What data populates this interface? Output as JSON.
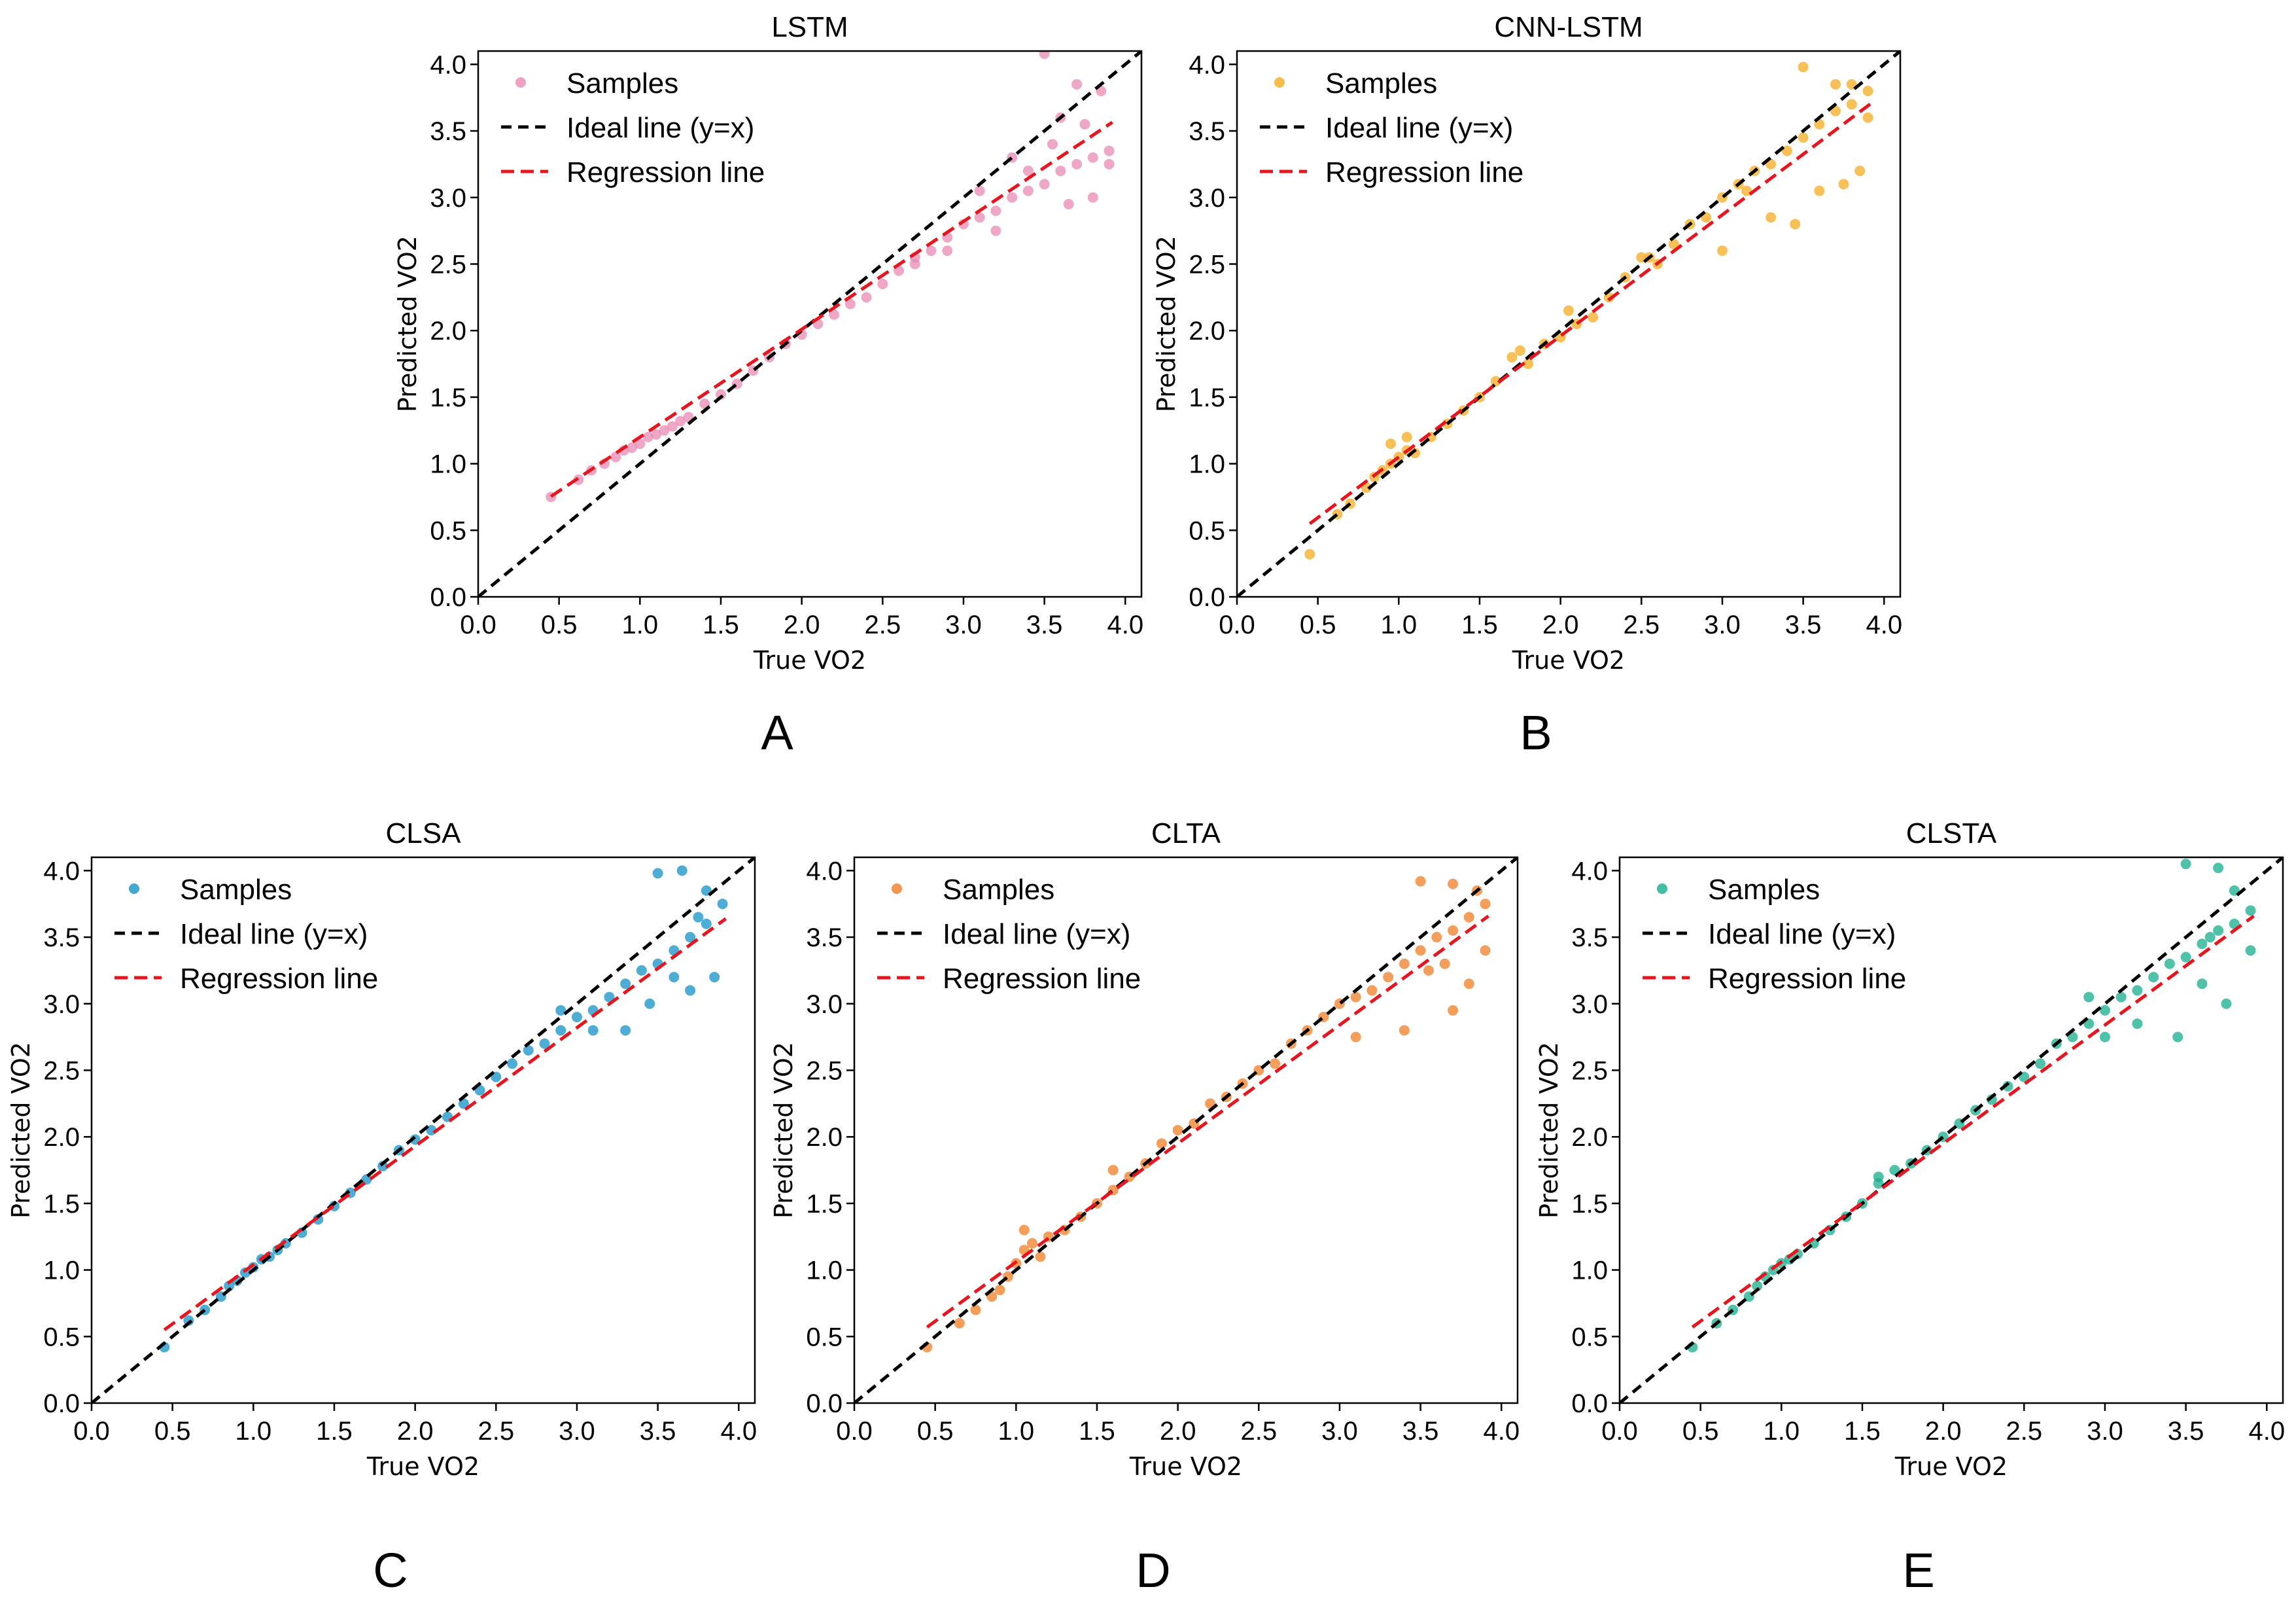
{
  "chart_data": [
    {
      "panel_label": "A",
      "title": "LSTM",
      "type": "scatter",
      "xlabel": "True VO2",
      "ylabel": "Predicted VO2",
      "xlim": [
        0.0,
        4.1
      ],
      "ylim": [
        0.0,
        4.1
      ],
      "xticks": [
        "0.0",
        "0.5",
        "1.0",
        "1.5",
        "2.0",
        "2.5",
        "3.0",
        "3.5",
        "4.0"
      ],
      "yticks": [
        "0.0",
        "0.5",
        "1.0",
        "1.5",
        "2.0",
        "2.5",
        "3.0",
        "3.5",
        "4.0"
      ],
      "legend": [
        "Samples",
        "Ideal line (y=x)",
        "Regression line"
      ],
      "legend_position": "top-left",
      "sample_color": "#e88ab4",
      "regression": {
        "slope": 0.81,
        "intercept": 0.39,
        "x_start": 0.45,
        "x_end": 3.92
      },
      "ideal_line": {
        "x_start": 0.0,
        "x_end": 4.1
      },
      "samples": [
        [
          0.45,
          0.75
        ],
        [
          0.62,
          0.88
        ],
        [
          0.7,
          0.95
        ],
        [
          0.78,
          1.0
        ],
        [
          0.85,
          1.05
        ],
        [
          0.9,
          1.1
        ],
        [
          0.95,
          1.12
        ],
        [
          1.0,
          1.15
        ],
        [
          1.05,
          1.2
        ],
        [
          1.1,
          1.22
        ],
        [
          1.15,
          1.25
        ],
        [
          1.2,
          1.28
        ],
        [
          1.25,
          1.32
        ],
        [
          1.3,
          1.35
        ],
        [
          1.4,
          1.45
        ],
        [
          1.5,
          1.52
        ],
        [
          1.6,
          1.6
        ],
        [
          1.7,
          1.7
        ],
        [
          1.8,
          1.8
        ],
        [
          1.9,
          1.9
        ],
        [
          2.0,
          1.97
        ],
        [
          2.1,
          2.05
        ],
        [
          2.2,
          2.12
        ],
        [
          2.3,
          2.2
        ],
        [
          2.4,
          2.25
        ],
        [
          2.5,
          2.35
        ],
        [
          2.6,
          2.45
        ],
        [
          2.7,
          2.5
        ],
        [
          2.8,
          2.6
        ],
        [
          2.9,
          2.7
        ],
        [
          3.0,
          2.8
        ],
        [
          3.1,
          2.85
        ],
        [
          3.2,
          2.9
        ],
        [
          3.3,
          3.0
        ],
        [
          3.4,
          3.05
        ],
        [
          3.5,
          3.1
        ],
        [
          3.6,
          3.2
        ],
        [
          3.7,
          3.25
        ],
        [
          3.8,
          3.3
        ],
        [
          3.9,
          3.35
        ],
        [
          3.5,
          4.08
        ],
        [
          3.7,
          3.85
        ],
        [
          3.6,
          3.6
        ],
        [
          3.75,
          3.55
        ],
        [
          3.85,
          3.8
        ],
        [
          3.4,
          3.2
        ],
        [
          3.3,
          3.3
        ],
        [
          3.1,
          3.05
        ],
        [
          2.9,
          2.6
        ],
        [
          3.8,
          3.0
        ],
        [
          3.65,
          2.95
        ],
        [
          3.55,
          3.4
        ],
        [
          3.9,
          3.25
        ],
        [
          3.2,
          2.75
        ],
        [
          2.7,
          2.55
        ]
      ]
    },
    {
      "panel_label": "B",
      "title": "CNN-LSTM",
      "type": "scatter",
      "xlabel": "True VO2",
      "ylabel": "Predicted VO2",
      "xlim": [
        0.0,
        4.1
      ],
      "ylim": [
        0.0,
        4.1
      ],
      "xticks": [
        "0.0",
        "0.5",
        "1.0",
        "1.5",
        "2.0",
        "2.5",
        "3.0",
        "3.5",
        "4.0"
      ],
      "yticks": [
        "0.0",
        "0.5",
        "1.0",
        "1.5",
        "2.0",
        "2.5",
        "3.0",
        "3.5",
        "4.0"
      ],
      "legend": [
        "Samples",
        "Ideal line (y=x)",
        "Regression line"
      ],
      "legend_position": "top-left",
      "sample_color": "#f5ac1f",
      "regression": {
        "slope": 0.91,
        "intercept": 0.14,
        "x_start": 0.45,
        "x_end": 3.92
      },
      "ideal_line": {
        "x_start": 0.0,
        "x_end": 4.1
      },
      "samples": [
        [
          0.45,
          0.32
        ],
        [
          0.62,
          0.62
        ],
        [
          0.7,
          0.7
        ],
        [
          0.8,
          0.82
        ],
        [
          0.85,
          0.9
        ],
        [
          0.9,
          0.95
        ],
        [
          0.95,
          1.0
        ],
        [
          1.0,
          1.05
        ],
        [
          1.05,
          1.1
        ],
        [
          1.1,
          1.08
        ],
        [
          1.2,
          1.2
        ],
        [
          1.3,
          1.3
        ],
        [
          1.4,
          1.4
        ],
        [
          1.5,
          1.5
        ],
        [
          1.6,
          1.62
        ],
        [
          1.7,
          1.8
        ],
        [
          1.8,
          1.75
        ],
        [
          1.9,
          1.9
        ],
        [
          2.0,
          1.95
        ],
        [
          2.1,
          2.05
        ],
        [
          2.2,
          2.1
        ],
        [
          2.3,
          2.25
        ],
        [
          2.4,
          2.4
        ],
        [
          2.5,
          2.55
        ],
        [
          2.6,
          2.5
        ],
        [
          2.7,
          2.65
        ],
        [
          2.8,
          2.8
        ],
        [
          2.9,
          2.85
        ],
        [
          3.0,
          3.0
        ],
        [
          3.1,
          3.1
        ],
        [
          3.2,
          3.2
        ],
        [
          3.3,
          3.25
        ],
        [
          3.4,
          3.35
        ],
        [
          3.5,
          3.45
        ],
        [
          3.6,
          3.55
        ],
        [
          3.7,
          3.65
        ],
        [
          3.8,
          3.7
        ],
        [
          3.9,
          3.8
        ],
        [
          3.5,
          3.98
        ],
        [
          3.7,
          3.85
        ],
        [
          3.6,
          3.05
        ],
        [
          3.85,
          3.2
        ],
        [
          3.0,
          2.6
        ],
        [
          3.3,
          2.85
        ],
        [
          3.45,
          2.8
        ],
        [
          3.75,
          3.1
        ],
        [
          2.55,
          2.55
        ],
        [
          1.75,
          1.85
        ],
        [
          2.05,
          2.15
        ],
        [
          3.15,
          3.05
        ],
        [
          0.95,
          1.15
        ],
        [
          1.05,
          1.2
        ],
        [
          3.9,
          3.6
        ],
        [
          3.8,
          3.85
        ]
      ]
    },
    {
      "panel_label": "C",
      "title": "CLSA",
      "type": "scatter",
      "xlabel": "True VO2",
      "ylabel": "Predicted VO2",
      "xlim": [
        0.0,
        4.1
      ],
      "ylim": [
        0.0,
        4.1
      ],
      "xticks": [
        "0.0",
        "0.5",
        "1.0",
        "1.5",
        "2.0",
        "2.5",
        "3.0",
        "3.5",
        "4.0"
      ],
      "yticks": [
        "0.0",
        "0.5",
        "1.0",
        "1.5",
        "2.0",
        "2.5",
        "3.0",
        "3.5",
        "4.0"
      ],
      "legend": [
        "Samples",
        "Ideal line (y=x)",
        "Regression line"
      ],
      "legend_position": "top-left",
      "sample_color": "#1391c6",
      "regression": {
        "slope": 0.89,
        "intercept": 0.15,
        "x_start": 0.45,
        "x_end": 3.92
      },
      "ideal_line": {
        "x_start": 0.0,
        "x_end": 4.1
      },
      "samples": [
        [
          0.45,
          0.42
        ],
        [
          0.6,
          0.62
        ],
        [
          0.7,
          0.7
        ],
        [
          0.8,
          0.8
        ],
        [
          0.85,
          0.88
        ],
        [
          0.9,
          0.92
        ],
        [
          0.95,
          0.98
        ],
        [
          1.0,
          1.02
        ],
        [
          1.05,
          1.08
        ],
        [
          1.1,
          1.1
        ],
        [
          1.15,
          1.15
        ],
        [
          1.2,
          1.2
        ],
        [
          1.3,
          1.28
        ],
        [
          1.4,
          1.38
        ],
        [
          1.5,
          1.48
        ],
        [
          1.6,
          1.58
        ],
        [
          1.7,
          1.68
        ],
        [
          1.8,
          1.78
        ],
        [
          1.9,
          1.9
        ],
        [
          2.0,
          1.98
        ],
        [
          2.1,
          2.05
        ],
        [
          2.2,
          2.15
        ],
        [
          2.3,
          2.25
        ],
        [
          2.4,
          2.35
        ],
        [
          2.5,
          2.45
        ],
        [
          2.6,
          2.55
        ],
        [
          2.7,
          2.65
        ],
        [
          2.8,
          2.7
        ],
        [
          2.9,
          2.8
        ],
        [
          3.0,
          2.9
        ],
        [
          3.1,
          2.95
        ],
        [
          3.2,
          3.05
        ],
        [
          3.3,
          3.15
        ],
        [
          3.4,
          3.25
        ],
        [
          3.5,
          3.3
        ],
        [
          3.6,
          3.4
        ],
        [
          3.7,
          3.5
        ],
        [
          3.8,
          3.6
        ],
        [
          3.9,
          3.75
        ],
        [
          3.5,
          3.98
        ],
        [
          3.65,
          4.0
        ],
        [
          3.8,
          3.85
        ],
        [
          3.6,
          3.2
        ],
        [
          3.7,
          3.1
        ],
        [
          3.85,
          3.2
        ],
        [
          3.1,
          2.8
        ],
        [
          3.3,
          2.8
        ],
        [
          2.9,
          2.95
        ],
        [
          3.45,
          3.0
        ],
        [
          3.75,
          3.65
        ]
      ]
    },
    {
      "panel_label": "D",
      "title": "CLTA",
      "type": "scatter",
      "xlabel": "True VO2",
      "ylabel": "Predicted VO2",
      "xlim": [
        0.0,
        4.1
      ],
      "ylim": [
        0.0,
        4.1
      ],
      "xticks": [
        "0.0",
        "0.5",
        "1.0",
        "1.5",
        "2.0",
        "2.5",
        "3.0",
        "3.5",
        "4.0"
      ],
      "yticks": [
        "0.0",
        "0.5",
        "1.0",
        "1.5",
        "2.0",
        "2.5",
        "3.0",
        "3.5",
        "4.0"
      ],
      "legend": [
        "Samples",
        "Ideal line (y=x)",
        "Regression line"
      ],
      "legend_position": "top-left",
      "sample_color": "#f07d24",
      "regression": {
        "slope": 0.89,
        "intercept": 0.17,
        "x_start": 0.45,
        "x_end": 3.92
      },
      "ideal_line": {
        "x_start": 0.0,
        "x_end": 4.1
      },
      "samples": [
        [
          0.45,
          0.42
        ],
        [
          0.65,
          0.6
        ],
        [
          0.75,
          0.7
        ],
        [
          0.85,
          0.8
        ],
        [
          0.9,
          0.85
        ],
        [
          0.95,
          0.95
        ],
        [
          1.0,
          1.05
        ],
        [
          1.05,
          1.15
        ],
        [
          1.1,
          1.2
        ],
        [
          1.15,
          1.1
        ],
        [
          1.2,
          1.25
        ],
        [
          1.3,
          1.3
        ],
        [
          1.4,
          1.4
        ],
        [
          1.5,
          1.5
        ],
        [
          1.6,
          1.6
        ],
        [
          1.7,
          1.7
        ],
        [
          1.8,
          1.8
        ],
        [
          1.9,
          1.95
        ],
        [
          2.0,
          2.05
        ],
        [
          2.1,
          2.1
        ],
        [
          2.2,
          2.25
        ],
        [
          2.3,
          2.3
        ],
        [
          2.4,
          2.4
        ],
        [
          2.5,
          2.5
        ],
        [
          2.6,
          2.55
        ],
        [
          2.7,
          2.7
        ],
        [
          2.8,
          2.8
        ],
        [
          2.9,
          2.9
        ],
        [
          3.0,
          3.0
        ],
        [
          3.1,
          3.05
        ],
        [
          3.2,
          3.1
        ],
        [
          3.3,
          3.2
        ],
        [
          3.4,
          3.3
        ],
        [
          3.5,
          3.4
        ],
        [
          3.6,
          3.5
        ],
        [
          3.7,
          3.55
        ],
        [
          3.8,
          3.65
        ],
        [
          3.9,
          3.75
        ],
        [
          3.5,
          3.92
        ],
        [
          3.7,
          3.9
        ],
        [
          3.85,
          3.85
        ],
        [
          3.65,
          3.3
        ],
        [
          3.8,
          3.15
        ],
        [
          3.9,
          3.4
        ],
        [
          3.4,
          2.8
        ],
        [
          3.1,
          2.75
        ],
        [
          3.55,
          3.25
        ],
        [
          3.7,
          2.95
        ],
        [
          1.05,
          1.3
        ],
        [
          1.6,
          1.75
        ]
      ]
    },
    {
      "panel_label": "E",
      "title": "CLSTA",
      "type": "scatter",
      "xlabel": "True VO2",
      "ylabel": "Predicted VO2",
      "xlim": [
        0.0,
        4.1
      ],
      "ylim": [
        0.0,
        4.1
      ],
      "xticks": [
        "0.0",
        "0.5",
        "1.0",
        "1.5",
        "2.0",
        "2.5",
        "3.0",
        "3.5",
        "4.0"
      ],
      "yticks": [
        "0.0",
        "0.5",
        "1.0",
        "1.5",
        "2.0",
        "2.5",
        "3.0",
        "3.5",
        "4.0"
      ],
      "legend": [
        "Samples",
        "Ideal line (y=x)",
        "Regression line"
      ],
      "legend_position": "top-left",
      "sample_color": "#14ad8c",
      "regression": {
        "slope": 0.89,
        "intercept": 0.17,
        "x_start": 0.45,
        "x_end": 3.92
      },
      "ideal_line": {
        "x_start": 0.0,
        "x_end": 4.1
      },
      "samples": [
        [
          0.45,
          0.42
        ],
        [
          0.6,
          0.6
        ],
        [
          0.7,
          0.7
        ],
        [
          0.8,
          0.8
        ],
        [
          0.85,
          0.88
        ],
        [
          0.9,
          0.95
        ],
        [
          0.95,
          1.0
        ],
        [
          1.0,
          1.05
        ],
        [
          1.05,
          1.08
        ],
        [
          1.1,
          1.12
        ],
        [
          1.2,
          1.2
        ],
        [
          1.3,
          1.3
        ],
        [
          1.4,
          1.4
        ],
        [
          1.5,
          1.5
        ],
        [
          1.6,
          1.65
        ],
        [
          1.7,
          1.75
        ],
        [
          1.8,
          1.8
        ],
        [
          1.9,
          1.9
        ],
        [
          2.0,
          2.0
        ],
        [
          2.1,
          2.1
        ],
        [
          2.2,
          2.2
        ],
        [
          2.3,
          2.28
        ],
        [
          2.4,
          2.38
        ],
        [
          2.5,
          2.45
        ],
        [
          2.6,
          2.55
        ],
        [
          2.7,
          2.7
        ],
        [
          2.8,
          2.75
        ],
        [
          2.9,
          2.85
        ],
        [
          3.0,
          2.95
        ],
        [
          3.1,
          3.05
        ],
        [
          3.2,
          3.1
        ],
        [
          3.3,
          3.2
        ],
        [
          3.4,
          3.3
        ],
        [
          3.5,
          3.35
        ],
        [
          3.6,
          3.45
        ],
        [
          3.7,
          3.55
        ],
        [
          3.8,
          3.6
        ],
        [
          3.9,
          3.7
        ],
        [
          3.5,
          4.05
        ],
        [
          3.7,
          4.02
        ],
        [
          3.8,
          3.85
        ],
        [
          3.6,
          3.15
        ],
        [
          3.75,
          3.0
        ],
        [
          3.9,
          3.4
        ],
        [
          3.2,
          2.85
        ],
        [
          3.45,
          2.75
        ],
        [
          3.0,
          2.75
        ],
        [
          1.6,
          1.7
        ],
        [
          2.9,
          3.05
        ],
        [
          3.65,
          3.5
        ]
      ]
    }
  ]
}
